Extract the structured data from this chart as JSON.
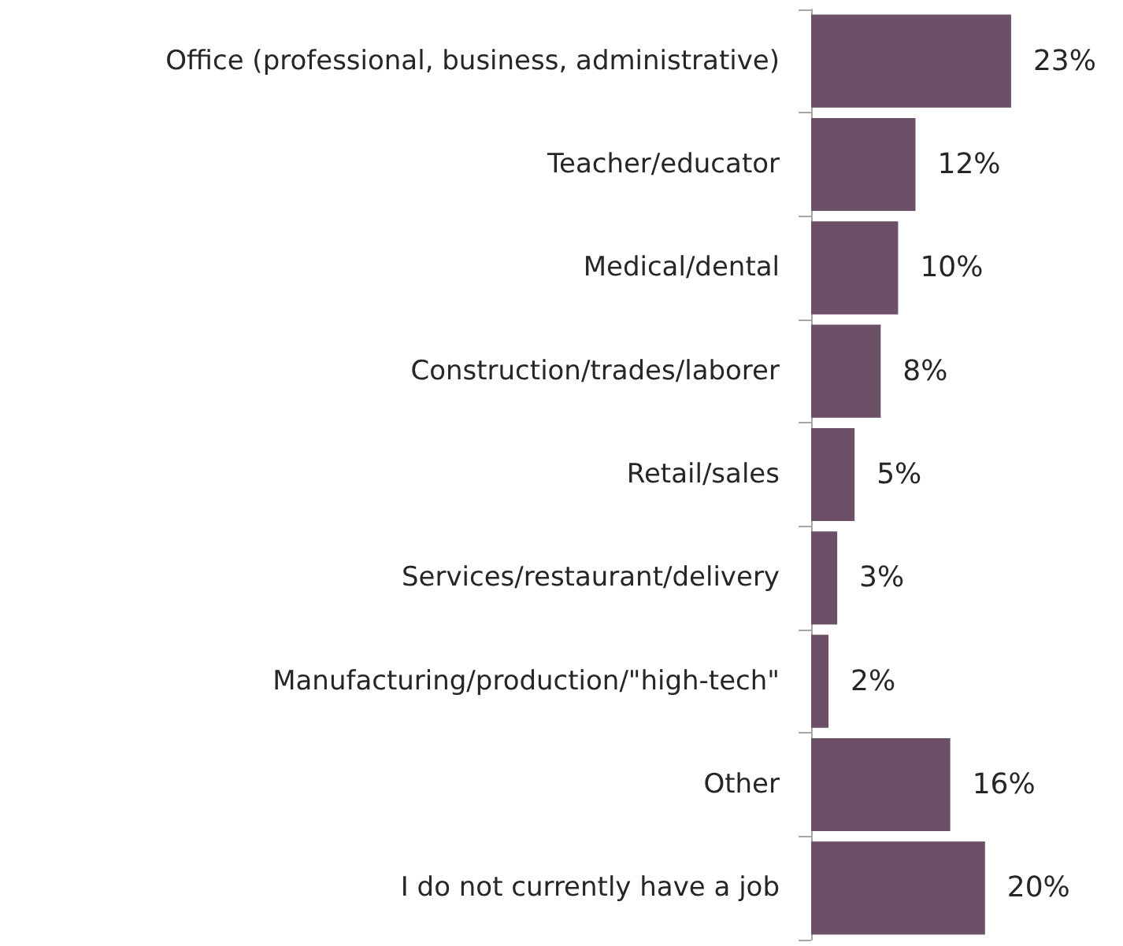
{
  "chart_data": {
    "type": "bar",
    "orientation": "horizontal",
    "categories": [
      "Office (professional, business, administrative)",
      "Teacher/educator",
      "Medical/dental",
      "Construction/trades/laborer",
      "Retail/sales",
      "Services/restaurant/delivery",
      "Manufacturing/production/\"high-tech\"",
      "Other",
      "I do not currently have a job"
    ],
    "values": [
      23,
      12,
      10,
      8,
      5,
      3,
      2,
      16,
      20
    ],
    "value_labels": [
      "23%",
      "12%",
      "10%",
      "8%",
      "5%",
      "3%",
      "2%",
      "16%",
      "20%"
    ],
    "color": "#6b5068",
    "grid": false
  }
}
